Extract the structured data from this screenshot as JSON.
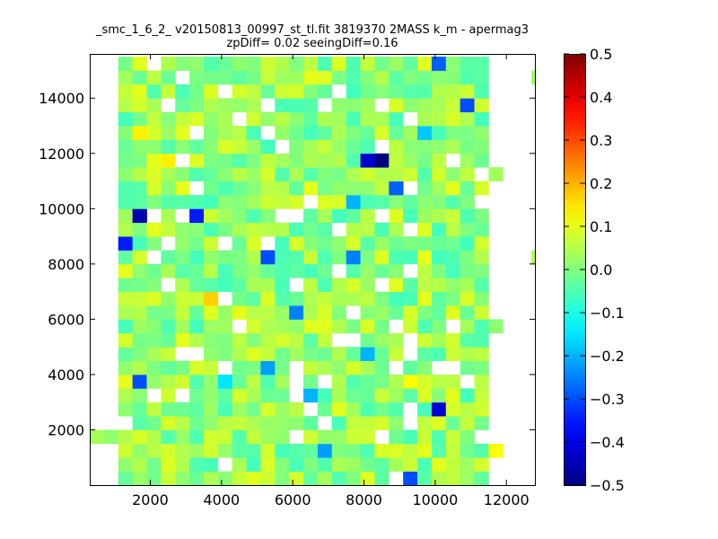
{
  "chart_data": {
    "type": "heatmap",
    "title_line1": "_smc_1_6_2_ v20150813_00997_st_tl.fit 3819370 2MASS k_m - apermag3",
    "title_line2": "zpDiff= 0.02 seeingDiff=0.16",
    "xlabel": "",
    "ylabel": "",
    "xlim": [
      300,
      12800
    ],
    "ylim": [
      0,
      15600
    ],
    "xticks": [
      2000,
      4000,
      6000,
      8000,
      10000,
      12000
    ],
    "yticks": [
      2000,
      4000,
      6000,
      8000,
      10000,
      12000,
      14000
    ],
    "colorbar": {
      "colormap": "jet",
      "range": [
        -0.5,
        0.5
      ],
      "ticks": [
        "0.5",
        "0.4",
        "0.3",
        "0.2",
        "0.1",
        "0.0",
        "−0.1",
        "−0.2",
        "−0.3",
        "−0.4",
        "−0.5"
      ]
    },
    "grid": false,
    "cell_size": [
      400,
      500
    ],
    "x_start": 300,
    "base_value": 0.02,
    "dense_region": {
      "x": [
        1100,
        11700
      ],
      "y": [
        0,
        15500
      ]
    },
    "outliers": [
      {
        "x": 8050,
        "y": 11800,
        "value": -0.42
      },
      {
        "x": 8450,
        "y": 11800,
        "value": -0.5
      },
      {
        "x": 1650,
        "y": 9550,
        "value": -0.45
      },
      {
        "x": 3250,
        "y": 9550,
        "value": -0.35
      },
      {
        "x": 1250,
        "y": 8550,
        "value": -0.35
      },
      {
        "x": 5250,
        "y": 8050,
        "value": -0.3
      },
      {
        "x": 7650,
        "y": 8050,
        "value": -0.25
      },
      {
        "x": 8850,
        "y": 10550,
        "value": -0.28
      },
      {
        "x": 10950,
        "y": 13800,
        "value": -0.3
      },
      {
        "x": 10150,
        "y": 15300,
        "value": -0.28
      },
      {
        "x": 6050,
        "y": 6050,
        "value": -0.25
      },
      {
        "x": 1650,
        "y": 3550,
        "value": -0.3
      },
      {
        "x": 10250,
        "y": 2550,
        "value": -0.42
      },
      {
        "x": 9450,
        "y": 300,
        "value": -0.3
      },
      {
        "x": 5250,
        "y": 4050,
        "value": -0.22
      },
      {
        "x": 7650,
        "y": 10050,
        "value": -0.2
      },
      {
        "x": 8050,
        "y": 4550,
        "value": -0.2
      },
      {
        "x": 4150,
        "y": 3550,
        "value": -0.15
      },
      {
        "x": 9850,
        "y": 12800,
        "value": -0.18
      },
      {
        "x": 6450,
        "y": 3050,
        "value": -0.2
      },
      {
        "x": 6850,
        "y": 1050,
        "value": -0.22
      },
      {
        "x": 3650,
        "y": 6550,
        "value": 0.17
      },
      {
        "x": 1650,
        "y": 12550,
        "value": 0.14
      },
      {
        "x": 2450,
        "y": 11550,
        "value": 0.14
      },
      {
        "x": 11650,
        "y": 1050,
        "value": 0.12
      },
      {
        "x": 9250,
        "y": 3550,
        "value": 0.12
      },
      {
        "x": 1250,
        "y": 3550,
        "value": 0.1
      },
      {
        "x": 9650,
        "y": 8050,
        "value": 0.1
      },
      {
        "x": 6450,
        "y": 10550,
        "value": 0.1
      },
      {
        "x": 6450,
        "y": 14550,
        "value": 0.1
      }
    ]
  }
}
